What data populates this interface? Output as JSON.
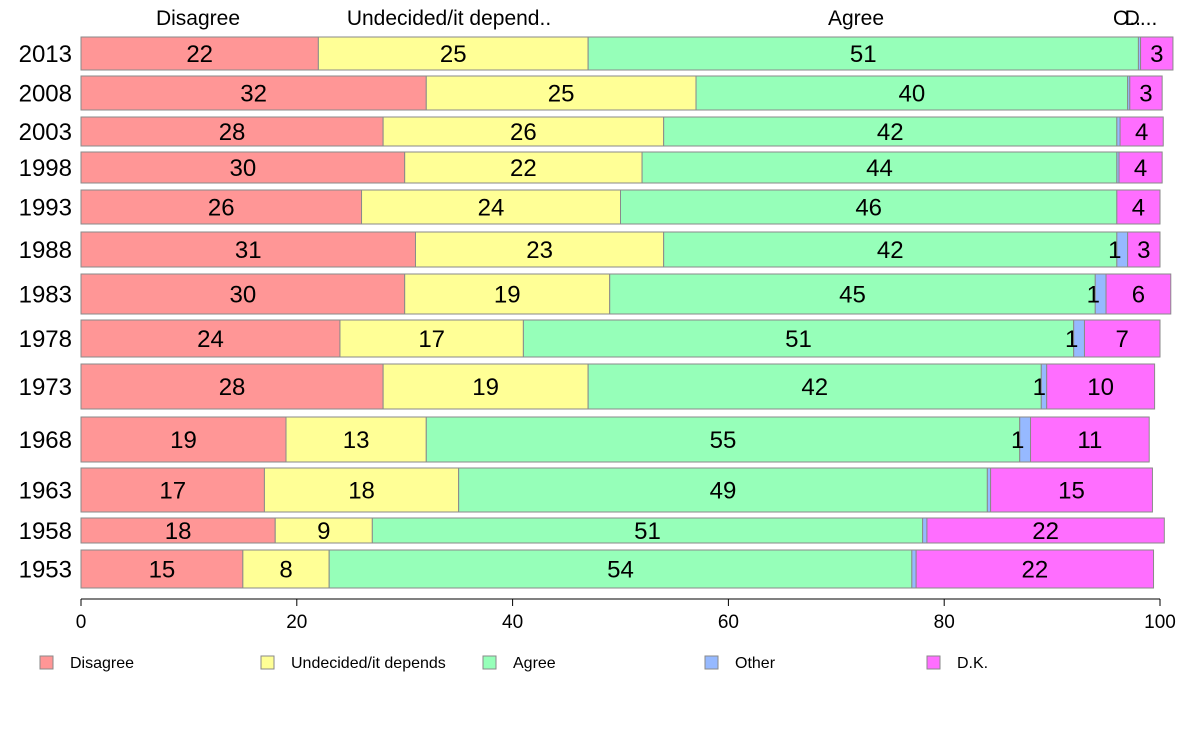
{
  "chart_data": {
    "type": "bar",
    "orientation": "horizontal",
    "stacked": true,
    "categories": [
      "2013",
      "2008",
      "2003",
      "1998",
      "1993",
      "1988",
      "1983",
      "1978",
      "1973",
      "1968",
      "1963",
      "1958",
      "1953"
    ],
    "series": [
      {
        "name": "Disagree",
        "color": "#ff9696",
        "values": [
          22,
          32,
          28,
          30,
          26,
          31,
          30,
          24,
          28,
          19,
          17,
          18,
          15
        ]
      },
      {
        "name": "Undecided/it depends",
        "color": "#ffff96",
        "values": [
          25,
          25,
          26,
          22,
          24,
          23,
          19,
          17,
          19,
          13,
          18,
          9,
          8
        ]
      },
      {
        "name": "Agree",
        "color": "#96ffb9",
        "values": [
          51,
          40,
          42,
          44,
          46,
          42,
          45,
          51,
          42,
          55,
          49,
          51,
          54
        ]
      },
      {
        "name": "Other",
        "color": "#96b9ff",
        "values": [
          0.2,
          0.2,
          0.3,
          0.2,
          0,
          1,
          1,
          1,
          0.5,
          1,
          0.3,
          0.4,
          0.4
        ]
      },
      {
        "name": "D.K.",
        "color": "#ff6eff",
        "values": [
          3,
          3,
          4,
          4,
          4,
          3,
          6,
          7,
          10,
          11,
          15,
          22,
          22
        ]
      }
    ],
    "data_labels": [
      [
        "22",
        "25",
        "51",
        "",
        "3"
      ],
      [
        "32",
        "25",
        "40",
        "",
        "3"
      ],
      [
        "28",
        "26",
        "42",
        "",
        "4"
      ],
      [
        "30",
        "22",
        "44",
        "",
        "4"
      ],
      [
        "26",
        "24",
        "46",
        "",
        "4"
      ],
      [
        "31",
        "23",
        "42",
        "1",
        "3"
      ],
      [
        "30",
        "19",
        "45",
        "1",
        "6"
      ],
      [
        "24",
        "17",
        "51",
        "1",
        "7"
      ],
      [
        "28",
        "19",
        "42",
        "1",
        "10"
      ],
      [
        "19",
        "13",
        "55",
        "1",
        "11"
      ],
      [
        "17",
        "18",
        "49",
        "",
        "15"
      ],
      [
        "18",
        "9",
        "51",
        "",
        "22"
      ],
      [
        "15",
        "8",
        "54",
        "",
        "22"
      ]
    ],
    "top_labels": [
      "Disagree",
      "Undecided/it depend..",
      "Agree",
      "O..",
      "D..."
    ],
    "xlim": [
      0,
      100
    ],
    "xticks": [
      0,
      20,
      40,
      60,
      80,
      100
    ],
    "xtick_labels": [
      "0",
      "20",
      "40",
      "60",
      "80",
      "100"
    ],
    "legend": {
      "placement": "bottom",
      "entries": [
        "Disagree",
        "Undecided/it depends",
        "Agree",
        "Other",
        "D.K."
      ]
    },
    "grid": false
  }
}
